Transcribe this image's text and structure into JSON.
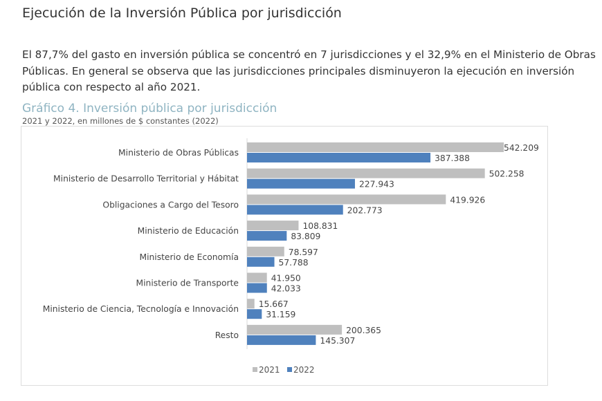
{
  "heading": "Ejecución de la Inversión Pública por jurisdicción",
  "paragraph": "El 87,7% del gasto en inversión pública se concentró en 7 jurisdicciones y el 32,9% en el Ministerio de Obras Públicas. En general se observa que las jurisdicciones principales disminuyeron la ejecución en inversión pública con respecto al año 2021.",
  "chart_data": {
    "type": "bar",
    "orientation": "horizontal",
    "title": "Gráfico 4. Inversión pública por jurisdicción",
    "subtitle": "2021 y 2022, en millones de $ constantes (2022)",
    "categories": [
      "Ministerio de Obras Públicas",
      "Ministerio de Desarrollo Territorial y Hábitat",
      "Obligaciones a Cargo del Tesoro",
      "Ministerio de Educación",
      "Ministerio de Economía",
      "Ministerio de Transporte",
      "Ministerio de Ciencia, Tecnología e Innovación",
      "Resto"
    ],
    "series": [
      {
        "name": "2021",
        "color": "#bfbfbf",
        "values": [
          542209,
          502258,
          419926,
          108831,
          78597,
          41950,
          15667,
          200365
        ],
        "labels": [
          "542.209",
          "502.258",
          "419.926",
          "108.831",
          "78.597",
          "41.950",
          "15.667",
          "200.365"
        ]
      },
      {
        "name": "2022",
        "color": "#4f81bd",
        "values": [
          387388,
          227943,
          202773,
          83809,
          57788,
          42033,
          31159,
          145307
        ],
        "labels": [
          "387.388",
          "227.943",
          "202.773",
          "83.809",
          "57.788",
          "42.033",
          "31.159",
          "145.307"
        ]
      }
    ],
    "grid": false,
    "legend": "bottom"
  }
}
